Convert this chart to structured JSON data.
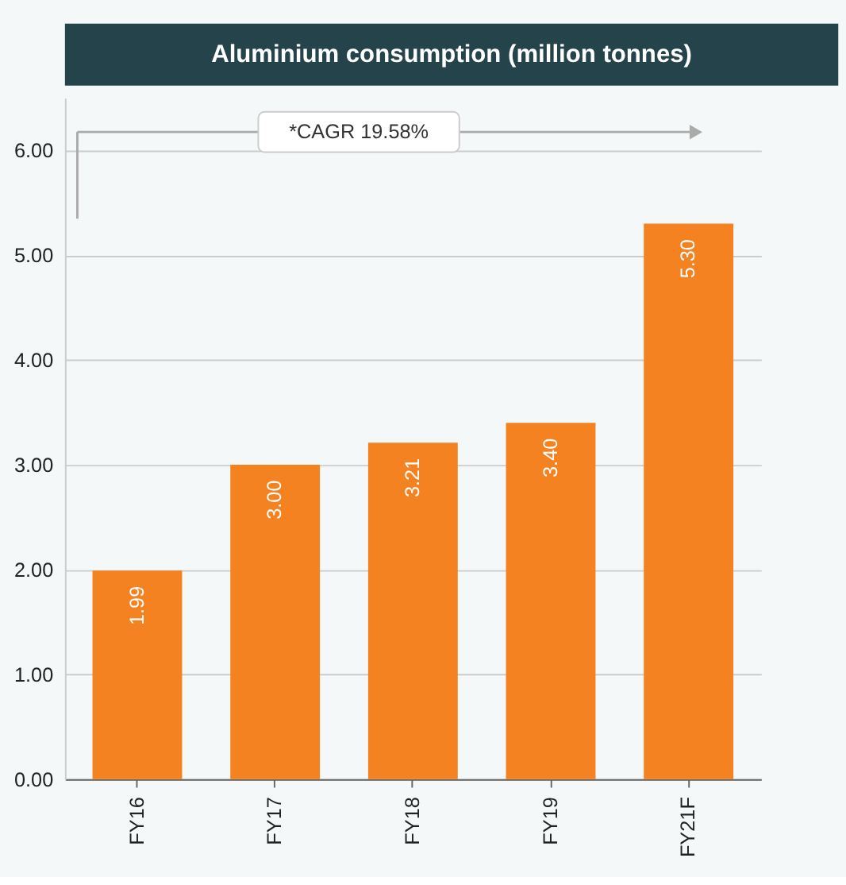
{
  "chart_data": {
    "type": "bar",
    "title": "Aluminium consumption (million tonnes)",
    "categories": [
      "FY16",
      "FY17",
      "FY18",
      "FY19",
      "FY21F"
    ],
    "values": [
      1.99,
      3.0,
      3.21,
      3.4,
      5.3
    ],
    "value_labels": [
      "1.99",
      "3.00",
      "3.21",
      "3.40",
      "5.30"
    ],
    "color": "#f58220",
    "ylim": [
      0,
      6.5
    ],
    "yticks": [
      {
        "value": 0,
        "label": "0.00"
      },
      {
        "value": 1,
        "label": "1.00"
      },
      {
        "value": 2,
        "label": "2.00"
      },
      {
        "value": 3,
        "label": "3.00"
      },
      {
        "value": 4,
        "label": "4.00"
      },
      {
        "value": 5,
        "label": "5.00"
      },
      {
        "value": 6,
        "label": "6.00"
      }
    ],
    "annotations": [
      "*CAGR 19.58%"
    ],
    "grid": "y"
  }
}
